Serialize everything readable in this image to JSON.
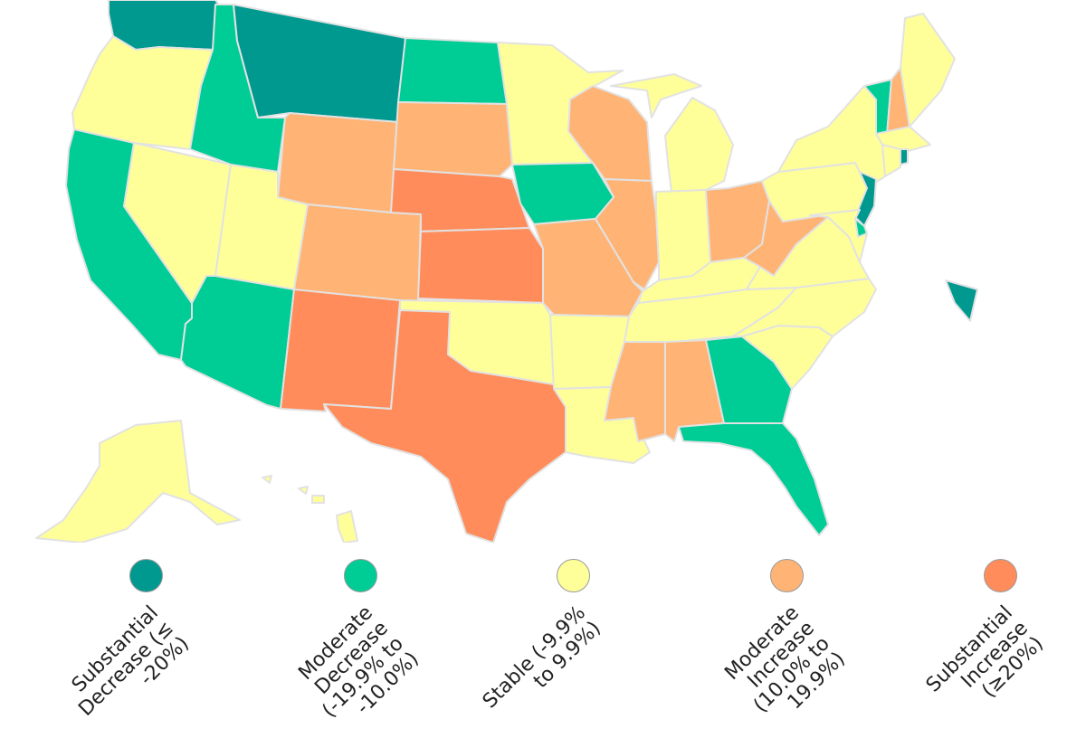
{
  "colors": {
    "substantial_decrease": "#00998f",
    "moderate_decrease": "#00cc96",
    "stable": "#ffff99",
    "moderate_increase": "#ffb375",
    "substantial_increase": "#ff8c5a",
    "border": "#e2e2e2"
  },
  "legend": [
    {
      "key": "substantial_decrease",
      "line1": "Substantial",
      "line2": "Decrease (≤",
      "line3": "-20%)"
    },
    {
      "key": "moderate_decrease",
      "line1": "Moderate",
      "line2": "Decrease",
      "line3": "(-19.9% to",
      "line4": "-10.0%)"
    },
    {
      "key": "stable",
      "line1": "Stable (-9.9%",
      "line2": "to 9.9%)"
    },
    {
      "key": "moderate_increase",
      "line1": "Moderate",
      "line2": "Increase",
      "line3": "(10.0% to",
      "line4": "19.9%)"
    },
    {
      "key": "substantial_increase",
      "line1": "Substantial",
      "line2": "Increase",
      "line3": "(≥20%)"
    }
  ],
  "states": [
    {
      "id": "WA",
      "category": "substantial_decrease"
    },
    {
      "id": "OR",
      "category": "stable"
    },
    {
      "id": "CA",
      "category": "moderate_decrease"
    },
    {
      "id": "NV",
      "category": "stable"
    },
    {
      "id": "ID",
      "category": "moderate_decrease"
    },
    {
      "id": "MT",
      "category": "substantial_decrease"
    },
    {
      "id": "WY",
      "category": "moderate_increase"
    },
    {
      "id": "UT",
      "category": "stable"
    },
    {
      "id": "AZ",
      "category": "moderate_decrease"
    },
    {
      "id": "CO",
      "category": "moderate_increase"
    },
    {
      "id": "NM",
      "category": "substantial_increase"
    },
    {
      "id": "ND",
      "category": "moderate_decrease"
    },
    {
      "id": "SD",
      "category": "moderate_increase"
    },
    {
      "id": "NE",
      "category": "substantial_increase"
    },
    {
      "id": "KS",
      "category": "substantial_increase"
    },
    {
      "id": "OK",
      "category": "stable"
    },
    {
      "id": "TX",
      "category": "substantial_increase"
    },
    {
      "id": "MN",
      "category": "stable"
    },
    {
      "id": "IA",
      "category": "moderate_decrease"
    },
    {
      "id": "MO",
      "category": "moderate_increase"
    },
    {
      "id": "AR",
      "category": "stable"
    },
    {
      "id": "LA",
      "category": "stable"
    },
    {
      "id": "WI",
      "category": "moderate_increase"
    },
    {
      "id": "IL",
      "category": "moderate_increase"
    },
    {
      "id": "MI",
      "category": "stable"
    },
    {
      "id": "IN",
      "category": "stable"
    },
    {
      "id": "OH",
      "category": "moderate_increase"
    },
    {
      "id": "KY",
      "category": "stable"
    },
    {
      "id": "TN",
      "category": "stable"
    },
    {
      "id": "MS",
      "category": "moderate_increase"
    },
    {
      "id": "AL",
      "category": "moderate_increase"
    },
    {
      "id": "GA",
      "category": "moderate_decrease"
    },
    {
      "id": "FL",
      "category": "moderate_decrease"
    },
    {
      "id": "SC",
      "category": "stable"
    },
    {
      "id": "NC",
      "category": "stable"
    },
    {
      "id": "VA",
      "category": "stable"
    },
    {
      "id": "WV",
      "category": "moderate_increase"
    },
    {
      "id": "PA",
      "category": "stable"
    },
    {
      "id": "NY",
      "category": "stable"
    },
    {
      "id": "NJ",
      "category": "substantial_decrease"
    },
    {
      "id": "DE",
      "category": "moderate_decrease"
    },
    {
      "id": "MD",
      "category": "stable"
    },
    {
      "id": "DC",
      "category": "substantial_decrease"
    },
    {
      "id": "VT",
      "category": "moderate_decrease"
    },
    {
      "id": "NH",
      "category": "moderate_increase"
    },
    {
      "id": "ME",
      "category": "stable"
    },
    {
      "id": "MA",
      "category": "stable"
    },
    {
      "id": "CT",
      "category": "stable"
    },
    {
      "id": "RI",
      "category": "substantial_decrease"
    },
    {
      "id": "AK",
      "category": "stable"
    },
    {
      "id": "HI",
      "category": "stable"
    }
  ]
}
